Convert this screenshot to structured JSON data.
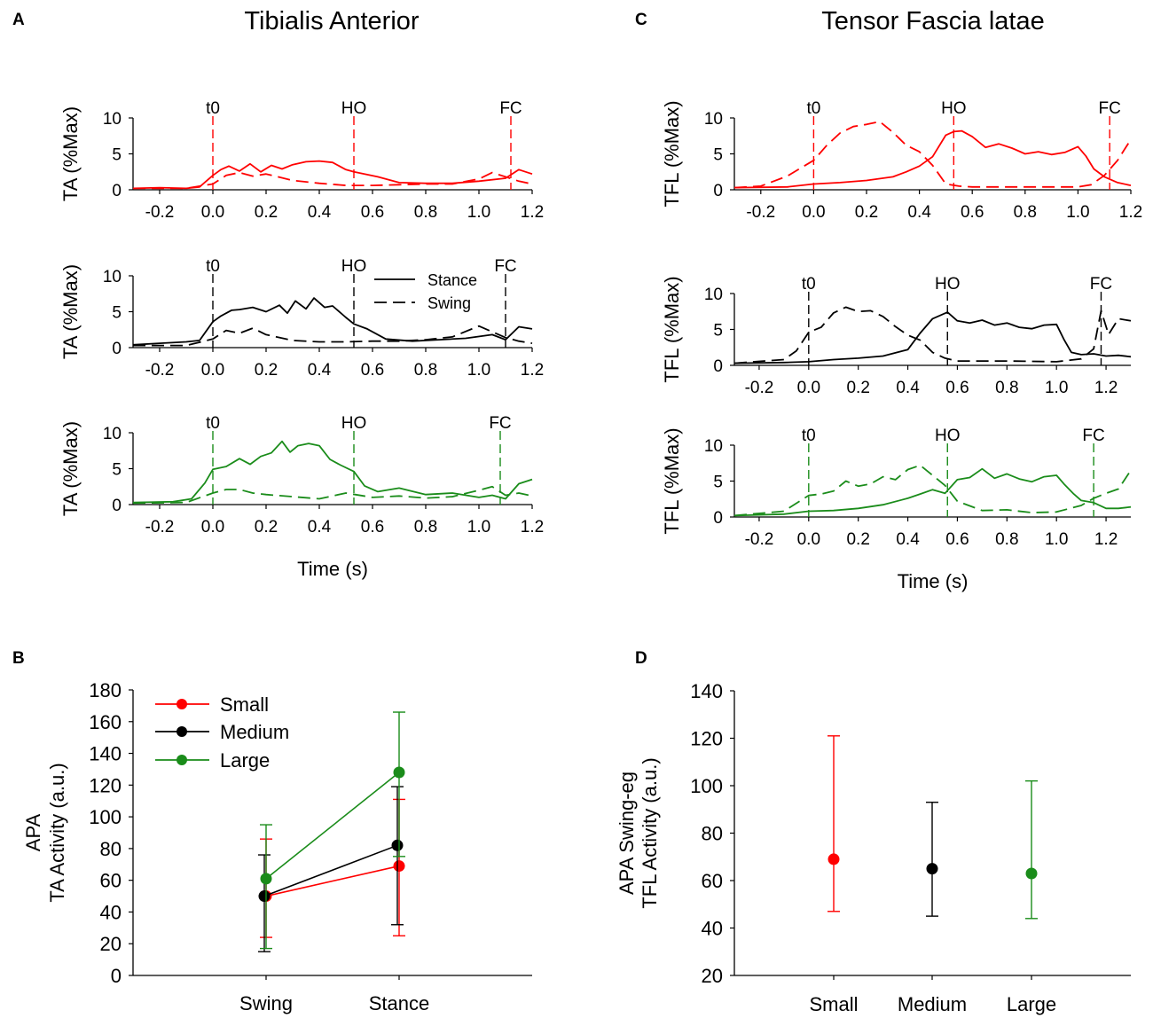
{
  "colors": {
    "small": "#ff0000",
    "medium": "#000000",
    "large": "#1a8c1a",
    "axis": "#000000"
  },
  "panels": {
    "A": "A",
    "B": "B",
    "C": "C",
    "D": "D"
  },
  "titles": {
    "A": "Tibialis Anterior",
    "C": "Tensor Fascia latae"
  },
  "time_axis_label": "Time (s)",
  "ta_ylabel": "TA (%Max)",
  "tfl_ylabel": "TFL  (%Max)",
  "events": {
    "t0": "t0",
    "HO": "HO",
    "FC": "FC"
  },
  "line_legend": {
    "stance": "Stance",
    "swing": "Swing"
  },
  "chart_data": [
    {
      "id": "A1",
      "type": "line",
      "condition": "Small",
      "ylabel": "TA (%Max)",
      "xlabel": "",
      "xlim": [
        -0.3,
        1.2
      ],
      "ylim": [
        0,
        10
      ],
      "xticks": [
        -0.2,
        0.0,
        0.2,
        0.4,
        0.6,
        0.8,
        1.0,
        1.2
      ],
      "xtick_labels": [
        "-0.2",
        "0.0",
        "0.2",
        "0.4",
        "0.6",
        "0.8",
        "1.0",
        "1.2"
      ],
      "yticks": [
        0,
        5,
        10
      ],
      "ytick_labels": [
        "0",
        "5",
        "10"
      ],
      "events": [
        {
          "name": "t0",
          "x": 0.0
        },
        {
          "name": "HO",
          "x": 0.53
        },
        {
          "name": "FC",
          "x": 1.12
        }
      ],
      "series": [
        {
          "name": "Stance",
          "style": "solid",
          "x": [
            -0.3,
            -0.2,
            -0.1,
            -0.05,
            0,
            0.03,
            0.06,
            0.1,
            0.14,
            0.18,
            0.22,
            0.26,
            0.3,
            0.35,
            0.4,
            0.45,
            0.5,
            0.53,
            0.57,
            0.62,
            0.7,
            0.8,
            0.9,
            1.0,
            1.1,
            1.15,
            1.2
          ],
          "y": [
            0.2,
            0.3,
            0.2,
            0.4,
            2.0,
            2.8,
            3.3,
            2.6,
            3.6,
            2.5,
            3.4,
            2.9,
            3.5,
            3.9,
            4.0,
            3.8,
            2.8,
            2.5,
            2.2,
            1.8,
            1.0,
            0.9,
            0.9,
            1.2,
            1.6,
            2.8,
            2.2
          ]
        },
        {
          "name": "Swing",
          "style": "dashed",
          "x": [
            -0.3,
            -0.1,
            0,
            0.05,
            0.1,
            0.15,
            0.2,
            0.3,
            0.4,
            0.5,
            0.6,
            0.7,
            0.8,
            0.9,
            1.0,
            1.05,
            1.1,
            1.15,
            1.2
          ],
          "y": [
            0.2,
            0.2,
            0.8,
            2.0,
            2.4,
            1.9,
            2.2,
            1.3,
            0.9,
            0.6,
            0.6,
            0.7,
            0.8,
            0.8,
            1.5,
            2.4,
            1.8,
            1.2,
            0.8
          ]
        }
      ]
    },
    {
      "id": "A2",
      "type": "line",
      "condition": "Medium",
      "ylabel": "TA (%Max)",
      "xlabel": "",
      "xlim": [
        -0.3,
        1.2
      ],
      "ylim": [
        0,
        10
      ],
      "xticks": [
        -0.2,
        0.0,
        0.2,
        0.4,
        0.6,
        0.8,
        1.0,
        1.2
      ],
      "xtick_labels": [
        "-0.2",
        "0.0",
        "0.2",
        "0.4",
        "0.6",
        "0.8",
        "1.0",
        "1.2"
      ],
      "yticks": [
        0,
        5,
        10
      ],
      "ytick_labels": [
        "0",
        "5",
        "10"
      ],
      "events": [
        {
          "name": "t0",
          "x": 0.0
        },
        {
          "name": "HO",
          "x": 0.53
        },
        {
          "name": "FC",
          "x": 1.1
        }
      ],
      "series": [
        {
          "name": "Stance",
          "style": "solid",
          "x": [
            -0.3,
            -0.2,
            -0.1,
            -0.05,
            0,
            0.03,
            0.07,
            0.1,
            0.15,
            0.2,
            0.25,
            0.28,
            0.31,
            0.35,
            0.38,
            0.42,
            0.45,
            0.5,
            0.53,
            0.58,
            0.65,
            0.75,
            0.85,
            0.95,
            1.05,
            1.1,
            1.15,
            1.2
          ],
          "y": [
            0.4,
            0.6,
            0.8,
            1.0,
            3.6,
            4.4,
            5.2,
            5.3,
            5.6,
            5.0,
            5.9,
            4.8,
            6.5,
            5.4,
            6.9,
            5.6,
            5.8,
            4.2,
            3.3,
            2.6,
            1.2,
            0.9,
            1.1,
            1.3,
            1.8,
            1.1,
            2.9,
            2.6
          ]
        },
        {
          "name": "Swing",
          "style": "dashed",
          "x": [
            -0.3,
            -0.1,
            0,
            0.05,
            0.1,
            0.15,
            0.2,
            0.3,
            0.4,
            0.5,
            0.6,
            0.7,
            0.8,
            0.9,
            1.0,
            1.05,
            1.1,
            1.15,
            1.2
          ],
          "y": [
            0.3,
            0.3,
            1.2,
            2.4,
            2.0,
            2.7,
            1.8,
            1.0,
            0.8,
            0.8,
            0.9,
            0.9,
            1.1,
            1.5,
            3.0,
            2.2,
            1.4,
            0.9,
            0.6
          ]
        }
      ]
    },
    {
      "id": "A3",
      "type": "line",
      "condition": "Large",
      "ylabel": "TA (%Max)",
      "xlabel": "Time (s)",
      "xlim": [
        -0.3,
        1.2
      ],
      "ylim": [
        0,
        10
      ],
      "xticks": [
        -0.2,
        0.0,
        0.2,
        0.4,
        0.6,
        0.8,
        1.0,
        1.2
      ],
      "xtick_labels": [
        "-0.2",
        "0.0",
        "0.2",
        "0.4",
        "0.6",
        "0.8",
        "1.0",
        "1.2"
      ],
      "yticks": [
        0,
        5,
        10
      ],
      "ytick_labels": [
        "0",
        "5",
        "10"
      ],
      "events": [
        {
          "name": "t0",
          "x": 0.0
        },
        {
          "name": "HO",
          "x": 0.53
        },
        {
          "name": "FC",
          "x": 1.08
        }
      ],
      "series": [
        {
          "name": "Stance",
          "style": "solid",
          "x": [
            -0.3,
            -0.15,
            -0.08,
            -0.03,
            0,
            0.05,
            0.1,
            0.14,
            0.18,
            0.22,
            0.26,
            0.29,
            0.32,
            0.36,
            0.4,
            0.44,
            0.48,
            0.53,
            0.57,
            0.62,
            0.7,
            0.8,
            0.9,
            1.0,
            1.05,
            1.1,
            1.15,
            1.2
          ],
          "y": [
            0.3,
            0.4,
            0.8,
            3.0,
            4.9,
            5.3,
            6.4,
            5.6,
            6.7,
            7.2,
            8.8,
            7.3,
            8.2,
            8.5,
            8.2,
            6.3,
            5.5,
            4.6,
            2.6,
            1.8,
            2.3,
            1.4,
            1.6,
            1.0,
            1.3,
            0.8,
            2.9,
            3.5
          ]
        },
        {
          "name": "Swing",
          "style": "dashed",
          "x": [
            -0.3,
            -0.1,
            0,
            0.05,
            0.1,
            0.15,
            0.2,
            0.3,
            0.4,
            0.5,
            0.6,
            0.7,
            0.8,
            0.9,
            1.0,
            1.05,
            1.1,
            1.15,
            1.2
          ],
          "y": [
            0.2,
            0.3,
            1.6,
            2.1,
            2.1,
            1.6,
            1.4,
            1.1,
            0.8,
            1.6,
            1.0,
            1.2,
            0.9,
            1.1,
            2.0,
            2.5,
            1.3,
            1.6,
            1.2
          ]
        }
      ]
    },
    {
      "id": "C1",
      "type": "line",
      "condition": "Small",
      "ylabel": "TFL  (%Max)",
      "xlabel": "",
      "xlim": [
        -0.3,
        1.2
      ],
      "ylim": [
        0,
        10
      ],
      "xticks": [
        -0.2,
        0.0,
        0.2,
        0.4,
        0.6,
        0.8,
        1.0,
        1.2
      ],
      "xtick_labels": [
        "-0.2",
        "0.0",
        "0.2",
        "0.4",
        "0.6",
        "0.8",
        "1.0",
        "1.2"
      ],
      "yticks": [
        0,
        5,
        10
      ],
      "ytick_labels": [
        "0",
        "5",
        "10"
      ],
      "events": [
        {
          "name": "t0",
          "x": 0.0
        },
        {
          "name": "HO",
          "x": 0.53
        },
        {
          "name": "FC",
          "x": 1.12
        }
      ],
      "series": [
        {
          "name": "Stance",
          "style": "solid",
          "x": [
            -0.3,
            -0.1,
            0,
            0.1,
            0.2,
            0.3,
            0.35,
            0.4,
            0.45,
            0.5,
            0.53,
            0.56,
            0.6,
            0.65,
            0.7,
            0.75,
            0.8,
            0.85,
            0.9,
            0.95,
            1.0,
            1.03,
            1.06,
            1.1,
            1.15,
            1.2
          ],
          "y": [
            0.3,
            0.4,
            0.8,
            1.0,
            1.3,
            1.8,
            2.5,
            3.3,
            4.6,
            7.6,
            8.1,
            8.2,
            7.4,
            5.9,
            6.4,
            5.8,
            5.0,
            5.3,
            4.9,
            5.2,
            6.0,
            4.7,
            2.9,
            1.8,
            1.0,
            0.6
          ]
        },
        {
          "name": "Swing",
          "style": "dashed",
          "x": [
            -0.3,
            -0.2,
            -0.1,
            0,
            0.05,
            0.1,
            0.15,
            0.2,
            0.25,
            0.3,
            0.35,
            0.4,
            0.45,
            0.5,
            0.55,
            0.6,
            0.8,
            1.0,
            1.05,
            1.1,
            1.15,
            1.2
          ],
          "y": [
            0.3,
            0.5,
            1.9,
            4.1,
            6.2,
            7.9,
            8.8,
            9.1,
            9.5,
            8.0,
            6.2,
            5.3,
            3.4,
            0.8,
            0.5,
            0.4,
            0.4,
            0.4,
            0.7,
            2.0,
            4.1,
            7.0
          ]
        }
      ]
    },
    {
      "id": "C2",
      "type": "line",
      "condition": "Medium",
      "ylabel": "TFL  (%Max)",
      "xlabel": "",
      "xlim": [
        -0.3,
        1.3
      ],
      "ylim": [
        0,
        10
      ],
      "xticks": [
        -0.2,
        0.0,
        0.2,
        0.4,
        0.6,
        0.8,
        1.0,
        1.2
      ],
      "xtick_labels": [
        "-0.2",
        "0.0",
        "0.2",
        "0.4",
        "0.6",
        "0.8",
        "1.0",
        "1.2"
      ],
      "yticks": [
        0,
        5,
        10
      ],
      "ytick_labels": [
        "0",
        "5",
        "10"
      ],
      "events": [
        {
          "name": "t0",
          "x": 0.0
        },
        {
          "name": "HO",
          "x": 0.56
        },
        {
          "name": "FC",
          "x": 1.18
        }
      ],
      "series": [
        {
          "name": "Stance",
          "style": "solid",
          "x": [
            -0.3,
            -0.1,
            0,
            0.1,
            0.2,
            0.3,
            0.4,
            0.45,
            0.5,
            0.56,
            0.6,
            0.65,
            0.7,
            0.75,
            0.8,
            0.85,
            0.9,
            0.95,
            1.0,
            1.03,
            1.06,
            1.1,
            1.15,
            1.2,
            1.25,
            1.3
          ],
          "y": [
            0.3,
            0.4,
            0.5,
            0.8,
            1.0,
            1.3,
            2.2,
            4.5,
            6.5,
            7.4,
            6.2,
            5.9,
            6.3,
            5.6,
            5.9,
            5.3,
            5.1,
            5.6,
            5.7,
            3.6,
            1.8,
            1.5,
            1.6,
            1.3,
            1.4,
            1.2
          ]
        },
        {
          "name": "Swing",
          "style": "dashed",
          "x": [
            -0.3,
            -0.1,
            -0.05,
            0,
            0.05,
            0.1,
            0.15,
            0.2,
            0.25,
            0.3,
            0.35,
            0.4,
            0.45,
            0.5,
            0.55,
            0.6,
            0.8,
            1.0,
            1.1,
            1.15,
            1.18,
            1.21,
            1.25,
            1.3
          ],
          "y": [
            0.3,
            0.8,
            2.0,
            4.6,
            5.3,
            7.3,
            8.1,
            7.5,
            7.6,
            6.8,
            5.4,
            4.2,
            3.5,
            1.8,
            1.0,
            0.6,
            0.6,
            0.5,
            0.9,
            2.3,
            7.6,
            4.3,
            6.5,
            6.2
          ]
        }
      ]
    },
    {
      "id": "C3",
      "type": "line",
      "condition": "Large",
      "ylabel": "TFL  (%Max)",
      "xlabel": "Time (s)",
      "xlim": [
        -0.3,
        1.3
      ],
      "ylim": [
        0,
        10
      ],
      "xticks": [
        -0.2,
        0.0,
        0.2,
        0.4,
        0.6,
        0.8,
        1.0,
        1.2
      ],
      "xtick_labels": [
        "-0.2",
        "0.0",
        "0.2",
        "0.4",
        "0.6",
        "0.8",
        "1.0",
        "1.2"
      ],
      "yticks": [
        0,
        5,
        10
      ],
      "ytick_labels": [
        "0",
        "5",
        "10"
      ],
      "events": [
        {
          "name": "t0",
          "x": 0.0
        },
        {
          "name": "HO",
          "x": 0.56
        },
        {
          "name": "FC",
          "x": 1.15
        }
      ],
      "series": [
        {
          "name": "Stance",
          "style": "solid",
          "x": [
            -0.3,
            -0.1,
            0,
            0.1,
            0.2,
            0.3,
            0.4,
            0.45,
            0.5,
            0.55,
            0.6,
            0.65,
            0.7,
            0.75,
            0.8,
            0.85,
            0.9,
            0.95,
            1.0,
            1.03,
            1.07,
            1.1,
            1.15,
            1.2,
            1.25,
            1.3
          ],
          "y": [
            0.2,
            0.4,
            0.8,
            0.9,
            1.2,
            1.7,
            2.6,
            3.2,
            3.8,
            3.3,
            5.2,
            5.5,
            6.7,
            5.4,
            6.0,
            5.3,
            4.9,
            5.6,
            5.8,
            4.6,
            3.2,
            2.3,
            2.0,
            1.2,
            1.2,
            1.4
          ]
        },
        {
          "name": "Swing",
          "style": "dashed",
          "x": [
            -0.3,
            -0.1,
            0,
            0.05,
            0.1,
            0.15,
            0.2,
            0.25,
            0.3,
            0.35,
            0.4,
            0.45,
            0.5,
            0.55,
            0.6,
            0.7,
            0.8,
            0.9,
            1.0,
            1.1,
            1.15,
            1.2,
            1.25,
            1.3
          ],
          "y": [
            0.2,
            0.8,
            3.0,
            3.2,
            3.6,
            5.0,
            4.3,
            4.6,
            5.6,
            5.2,
            6.6,
            7.2,
            5.8,
            4.4,
            2.2,
            0.9,
            1.0,
            0.6,
            0.7,
            1.6,
            2.6,
            3.3,
            3.9,
            6.5
          ]
        }
      ]
    },
    {
      "id": "B",
      "type": "line",
      "subtype": "errorbar",
      "ylabel_lines": [
        "APA",
        "TA Activity (a.u.)"
      ],
      "categories": [
        "Swing",
        "Stance"
      ],
      "ylim": [
        0,
        180
      ],
      "yticks": [
        0,
        20,
        40,
        60,
        80,
        100,
        120,
        140,
        160,
        180
      ],
      "ytick_labels": [
        "0",
        "20",
        "40",
        "60",
        "80",
        "100",
        "120",
        "140",
        "160",
        "180"
      ],
      "legend_position": "top-left",
      "series": [
        {
          "name": "Small",
          "values": [
            50,
            69
          ],
          "err_low": [
            24,
            25
          ],
          "err_high": [
            86,
            111
          ]
        },
        {
          "name": "Medium",
          "values": [
            50,
            82
          ],
          "err_low": [
            15,
            32
          ],
          "err_high": [
            76,
            119
          ]
        },
        {
          "name": "Large",
          "values": [
            61,
            128
          ],
          "err_low": [
            17,
            75
          ],
          "err_high": [
            95,
            166
          ]
        }
      ]
    },
    {
      "id": "D",
      "type": "scatter",
      "subtype": "errorbar",
      "ylabel_lines": [
        "APA Swing-eg",
        "TFL Activity (a.u.)"
      ],
      "categories": [
        "Small",
        "Medium",
        "Large"
      ],
      "ylim": [
        20,
        140
      ],
      "yticks": [
        20,
        40,
        60,
        80,
        100,
        120,
        140
      ],
      "ytick_labels": [
        "20",
        "40",
        "60",
        "80",
        "100",
        "120",
        "140"
      ],
      "values": [
        69,
        65,
        63
      ],
      "err_low": [
        47,
        45,
        44
      ],
      "err_high": [
        121,
        93,
        102
      ]
    }
  ]
}
